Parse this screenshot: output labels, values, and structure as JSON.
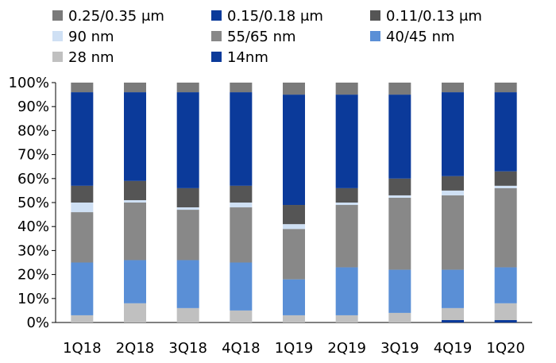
{
  "chart_data": {
    "type": "bar",
    "stacked": true,
    "categories": [
      "1Q18",
      "2Q18",
      "3Q18",
      "4Q18",
      "1Q19",
      "2Q19",
      "3Q19",
      "4Q19",
      "1Q20"
    ],
    "ylim": [
      0,
      100
    ],
    "y_ticks": [
      "0%",
      "10%",
      "20%",
      "30%",
      "40%",
      "50%",
      "60%",
      "70%",
      "80%",
      "90%",
      "100%"
    ],
    "legend_position": "top",
    "series": [
      {
        "name": "14nm",
        "color": "#0b3a9a",
        "values": [
          0,
          0,
          0,
          0,
          0,
          0,
          0,
          1,
          1
        ]
      },
      {
        "name": "28 nm",
        "color": "#c0c0c0",
        "values": [
          3,
          8,
          6,
          5,
          3,
          3,
          4,
          5,
          7
        ]
      },
      {
        "name": "40/45 nm",
        "color": "#5a8fd6",
        "values": [
          22,
          18,
          20,
          20,
          15,
          20,
          18,
          16,
          15
        ]
      },
      {
        "name": "55/65 nm",
        "color": "#888888",
        "values": [
          21,
          24,
          21,
          23,
          21,
          26,
          30,
          31,
          33
        ]
      },
      {
        "name": "90 nm",
        "color": "#cfe0f4",
        "values": [
          4,
          1,
          1,
          2,
          2,
          1,
          1,
          2,
          1
        ]
      },
      {
        "name": "0.11/0.13 μm",
        "color": "#555555",
        "values": [
          7,
          8,
          8,
          7,
          8,
          6,
          7,
          6,
          6
        ]
      },
      {
        "name": "0.15/0.18 μm",
        "color": "#0b3a9a",
        "values": [
          39,
          37,
          40,
          39,
          46,
          39,
          35,
          35,
          33
        ]
      },
      {
        "name": "0.25/0.35 μm",
        "color": "#7a7a7a",
        "values": [
          4,
          4,
          4,
          4,
          5,
          5,
          5,
          4,
          4
        ]
      }
    ],
    "legend_order": [
      "0.25/0.35 μm",
      "0.15/0.18 μm",
      "0.11/0.13 μm",
      "90 nm",
      "55/65 nm",
      "40/45 nm",
      "28 nm",
      "14nm"
    ]
  }
}
